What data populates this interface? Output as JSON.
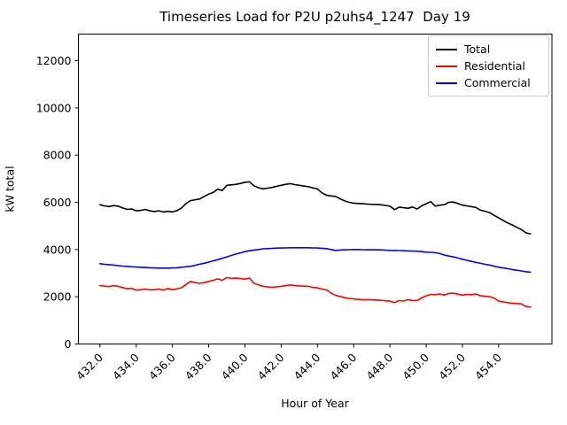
{
  "chart_data": {
    "type": "line",
    "title": "Timeseries Load for P2U p2uhs4_1247  Day 19",
    "xlabel": "Hour of Year",
    "ylabel": "kW total",
    "grid": false,
    "background": "#ffffff",
    "axis_color": "#000000",
    "xlim": [
      430.81,
      456.94
    ],
    "ylim": [
      0,
      13125
    ],
    "xticks": [
      432,
      434,
      436,
      438,
      440,
      442,
      444,
      446,
      448,
      450,
      452,
      454
    ],
    "xtick_labels": [
      "432.0",
      "434.0",
      "436.0",
      "438.0",
      "440.0",
      "442.0",
      "444.0",
      "446.0",
      "448.0",
      "450.0",
      "452.0",
      "454.0"
    ],
    "yticks": [
      0,
      2000,
      4000,
      6000,
      8000,
      10000,
      12000
    ],
    "ytick_labels": [
      "0",
      "2000",
      "4000",
      "6000",
      "8000",
      "10000",
      "12000"
    ],
    "legend": {
      "position": "upper right"
    },
    "x": [
      432.0,
      432.25,
      432.5,
      432.75,
      433.0,
      433.25,
      433.5,
      433.75,
      434.0,
      434.25,
      434.5,
      434.75,
      435.0,
      435.25,
      435.5,
      435.75,
      436.0,
      436.25,
      436.5,
      436.75,
      437.0,
      437.25,
      437.5,
      437.75,
      438.0,
      438.25,
      438.5,
      438.75,
      439.0,
      439.25,
      439.5,
      439.75,
      440.0,
      440.25,
      440.5,
      440.75,
      441.0,
      441.25,
      441.5,
      441.75,
      442.0,
      442.25,
      442.5,
      442.75,
      443.0,
      443.25,
      443.5,
      443.75,
      444.0,
      444.25,
      444.5,
      444.75,
      445.0,
      445.25,
      445.5,
      445.75,
      446.0,
      446.25,
      446.5,
      446.75,
      447.0,
      447.25,
      447.5,
      447.75,
      448.0,
      448.25,
      448.5,
      448.75,
      449.0,
      449.25,
      449.5,
      449.75,
      450.0,
      450.25,
      450.5,
      450.75,
      451.0,
      451.25,
      451.5,
      451.75,
      452.0,
      452.25,
      452.5,
      452.75,
      453.0,
      453.25,
      453.5,
      453.75,
      454.0,
      454.25,
      454.5,
      454.75,
      455.0,
      455.25,
      455.5,
      455.75
    ],
    "series": [
      {
        "name": "Total",
        "color": "#000000",
        "values": [
          5900,
          5850,
          5820,
          5860,
          5840,
          5760,
          5700,
          5720,
          5640,
          5660,
          5700,
          5640,
          5610,
          5640,
          5590,
          5620,
          5590,
          5650,
          5760,
          5950,
          6070,
          6110,
          6140,
          6250,
          6350,
          6420,
          6560,
          6500,
          6720,
          6740,
          6760,
          6800,
          6850,
          6870,
          6700,
          6620,
          6570,
          6600,
          6630,
          6680,
          6720,
          6760,
          6790,
          6750,
          6720,
          6690,
          6660,
          6610,
          6570,
          6400,
          6300,
          6270,
          6250,
          6150,
          6060,
          6000,
          5965,
          5950,
          5940,
          5925,
          5915,
          5910,
          5900,
          5870,
          5840,
          5690,
          5790,
          5770,
          5750,
          5800,
          5715,
          5850,
          5940,
          6030,
          5840,
          5880,
          5900,
          6000,
          6010,
          5950,
          5880,
          5850,
          5815,
          5780,
          5665,
          5620,
          5565,
          5450,
          5340,
          5230,
          5125,
          5040,
          4940,
          4850,
          4710,
          4665
        ]
      },
      {
        "name": "Residential",
        "color": "#ff0000",
        "values": [
          2475,
          2450,
          2430,
          2470,
          2440,
          2390,
          2340,
          2360,
          2280,
          2300,
          2330,
          2290,
          2300,
          2330,
          2280,
          2350,
          2300,
          2340,
          2380,
          2520,
          2650,
          2600,
          2570,
          2600,
          2650,
          2700,
          2760,
          2700,
          2815,
          2780,
          2790,
          2770,
          2750,
          2790,
          2570,
          2500,
          2440,
          2420,
          2400,
          2420,
          2440,
          2470,
          2500,
          2480,
          2460,
          2450,
          2440,
          2400,
          2375,
          2330,
          2290,
          2160,
          2060,
          2010,
          1960,
          1930,
          1910,
          1890,
          1875,
          1880,
          1875,
          1860,
          1850,
          1830,
          1815,
          1750,
          1840,
          1820,
          1875,
          1840,
          1840,
          1950,
          2040,
          2100,
          2090,
          2120,
          2070,
          2140,
          2150,
          2110,
          2070,
          2100,
          2090,
          2120,
          2040,
          2020,
          2000,
          1950,
          1815,
          1780,
          1750,
          1730,
          1715,
          1700,
          1590,
          1565
        ]
      },
      {
        "name": "Commercial",
        "color": "#0000ff",
        "values": [
          3400,
          3375,
          3360,
          3340,
          3320,
          3300,
          3290,
          3270,
          3260,
          3250,
          3240,
          3230,
          3220,
          3215,
          3215,
          3215,
          3220,
          3230,
          3250,
          3270,
          3290,
          3330,
          3380,
          3420,
          3470,
          3520,
          3570,
          3630,
          3690,
          3750,
          3810,
          3860,
          3910,
          3950,
          3980,
          4000,
          4030,
          4040,
          4050,
          4060,
          4065,
          4070,
          4075,
          4075,
          4075,
          4075,
          4075,
          4070,
          4065,
          4055,
          4040,
          4000,
          3965,
          3980,
          3990,
          3995,
          4000,
          4000,
          3995,
          3990,
          3990,
          3990,
          3985,
          3975,
          3965,
          3960,
          3955,
          3950,
          3940,
          3935,
          3930,
          3915,
          3890,
          3880,
          3865,
          3830,
          3770,
          3725,
          3690,
          3640,
          3590,
          3545,
          3500,
          3455,
          3415,
          3375,
          3340,
          3295,
          3250,
          3220,
          3190,
          3155,
          3125,
          3095,
          3065,
          3040
        ]
      }
    ]
  }
}
